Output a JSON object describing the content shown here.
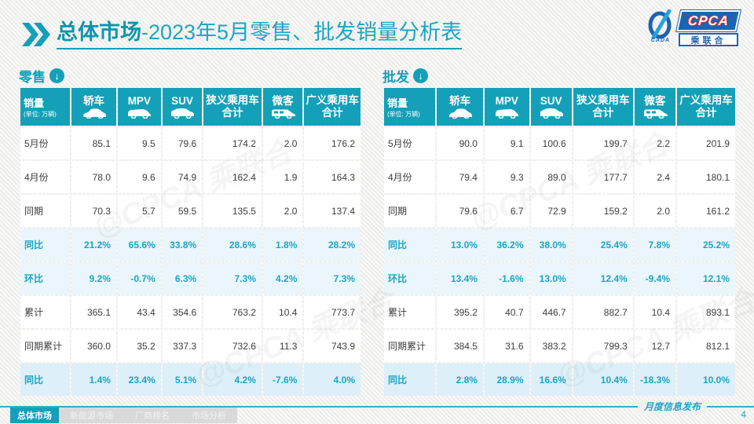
{
  "header": {
    "title_bold": "总体市场",
    "title_rest": "-2023年5月零售、批发销量分析表"
  },
  "logo": {
    "cpca": "CPCA",
    "cn": "乘联合",
    "swoosh_text": "CADA"
  },
  "watermark": "@CPCA 乘联合",
  "section_icon": "↓",
  "tables": [
    {
      "section": "零售",
      "unit_label": "销量",
      "unit_sub": "(单位: 万辆)",
      "columns": [
        {
          "label": "轿车",
          "icon": "sedan-car-icon"
        },
        {
          "label": "MPV",
          "icon": "mpv-car-icon"
        },
        {
          "label": "SUV",
          "icon": "suv-car-icon"
        },
        {
          "label": "狭义乘用车\n合计",
          "icon": null
        },
        {
          "label": "微客",
          "icon": "microvan-icon"
        },
        {
          "label": "广义乘用车\n合计",
          "icon": null
        }
      ],
      "rows": [
        {
          "label": "5月份",
          "type": "normal",
          "values": [
            "85.1",
            "9.5",
            "79.6",
            "174.2",
            "2.0",
            "176.2"
          ]
        },
        {
          "label": "4月份",
          "type": "normal",
          "values": [
            "78.0",
            "9.6",
            "74.9",
            "162.4",
            "1.9",
            "164.3"
          ]
        },
        {
          "label": "同期",
          "type": "normal",
          "values": [
            "70.3",
            "5.7",
            "59.5",
            "135.5",
            "2.0",
            "137.4"
          ]
        },
        {
          "label": "同比",
          "type": "percent",
          "values": [
            "21.2%",
            "65.6%",
            "33.8%",
            "28.6%",
            "1.8%",
            "28.2%"
          ]
        },
        {
          "label": "环比",
          "type": "percent",
          "values": [
            "9.2%",
            "-0.7%",
            "6.3%",
            "7.3%",
            "4.2%",
            "7.3%"
          ]
        },
        {
          "label": "累计",
          "type": "normal",
          "values": [
            "365.1",
            "43.4",
            "354.6",
            "763.2",
            "10.4",
            "773.7"
          ]
        },
        {
          "label": "同期累计",
          "type": "normal",
          "values": [
            "360.0",
            "35.2",
            "337.3",
            "732.6",
            "11.3",
            "743.9"
          ]
        },
        {
          "label": "同比",
          "type": "percent-strong",
          "values": [
            "1.4%",
            "23.4%",
            "5.1%",
            "4.2%",
            "-7.6%",
            "4.0%"
          ]
        }
      ]
    },
    {
      "section": "批发",
      "unit_label": "销量",
      "unit_sub": "(单位: 万辆)",
      "columns": [
        {
          "label": "轿车",
          "icon": "sedan-car-icon"
        },
        {
          "label": "MPV",
          "icon": "mpv-car-icon"
        },
        {
          "label": "SUV",
          "icon": "suv-car-icon"
        },
        {
          "label": "狭义乘用车\n合计",
          "icon": null
        },
        {
          "label": "微客",
          "icon": "microvan-icon"
        },
        {
          "label": "广义乘用车\n合计",
          "icon": null
        }
      ],
      "rows": [
        {
          "label": "5月份",
          "type": "normal",
          "values": [
            "90.0",
            "9.1",
            "100.6",
            "199.7",
            "2.2",
            "201.9"
          ]
        },
        {
          "label": "4月份",
          "type": "normal",
          "values": [
            "79.4",
            "9.3",
            "89.0",
            "177.7",
            "2.4",
            "180.1"
          ]
        },
        {
          "label": "同期",
          "type": "normal",
          "values": [
            "79.6",
            "6.7",
            "72.9",
            "159.2",
            "2.0",
            "161.2"
          ]
        },
        {
          "label": "同比",
          "type": "percent",
          "values": [
            "13.0%",
            "36.2%",
            "38.0%",
            "25.4%",
            "7.8%",
            "25.2%"
          ]
        },
        {
          "label": "环比",
          "type": "percent",
          "values": [
            "13.4%",
            "-1.6%",
            "13.0%",
            "12.4%",
            "-9.4%",
            "12.1%"
          ]
        },
        {
          "label": "累计",
          "type": "normal",
          "values": [
            "395.2",
            "40.7",
            "446.7",
            "882.7",
            "10.4",
            "893.1"
          ]
        },
        {
          "label": "同期累计",
          "type": "normal",
          "values": [
            "384.5",
            "31.6",
            "383.2",
            "799.3",
            "12.7",
            "812.1"
          ]
        },
        {
          "label": "同比",
          "type": "percent-strong",
          "values": [
            "2.8%",
            "28.9%",
            "16.6%",
            "10.4%",
            "-18.3%",
            "10.0%"
          ]
        }
      ]
    }
  ],
  "footer": {
    "tabs": [
      {
        "label": "总体市场",
        "active": true
      },
      {
        "label": "新能源市场",
        "active": false
      },
      {
        "label": "厂商排名",
        "active": false
      },
      {
        "label": "市场分析",
        "active": false
      }
    ],
    "publication": "月度信息发布",
    "page": "4"
  },
  "colors": {
    "accent": "#14a0b8",
    "accent_dark": "#0d96ad",
    "accent_light": "#1ba6c4",
    "row_percent_bg": "#eaf6fb",
    "row_percent_strong_bg": "#ddeff8",
    "logo_blue": "#1e63b0",
    "logo_red": "#d42b2b"
  }
}
